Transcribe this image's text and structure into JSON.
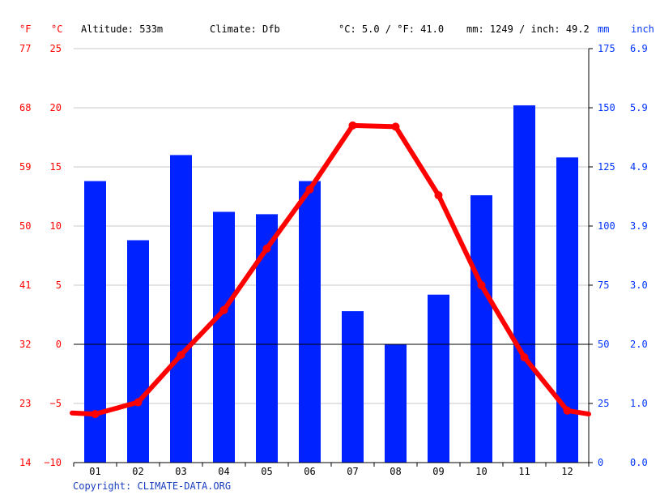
{
  "header": {
    "f_unit": "°F",
    "c_unit": "°C",
    "altitude": "Altitude: 533m",
    "climate": "Climate: Dfb",
    "temp_avg": "°C: 5.0 / °F: 41.0",
    "precip_total": "mm: 1249 / inch: 49.2",
    "mm_unit": "mm",
    "inch_unit": "inch"
  },
  "copyright": "Copyright: CLIMATE-DATA.ORG",
  "colors": {
    "temperature": "#ff0000",
    "precipitation": "#0022ff",
    "grid": "#c8c8c8",
    "zero_line": "#000000"
  },
  "chart_data": {
    "type": "bar",
    "categories": [
      "01",
      "02",
      "03",
      "04",
      "05",
      "06",
      "07",
      "08",
      "09",
      "10",
      "11",
      "12"
    ],
    "series": [
      {
        "type": "bar",
        "axis": "right",
        "unit": "mm",
        "values": [
          119,
          94,
          130,
          106,
          105,
          119,
          64,
          50,
          71,
          113,
          151,
          129
        ]
      },
      {
        "type": "line",
        "axis": "left",
        "unit": "°C",
        "values": [
          -5.9,
          -4.9,
          -0.9,
          2.9,
          8.1,
          13.1,
          18.5,
          18.4,
          12.6,
          5.0,
          -1.1,
          -5.6
        ],
        "start_value": -5.8,
        "end_value": -5.9
      }
    ],
    "y_left": {
      "label": "°C",
      "ylim": [
        -10,
        25
      ],
      "ticks": [
        "25",
        "20",
        "15",
        "10",
        "5",
        "0",
        "−5",
        "−10"
      ]
    },
    "y_left_f": {
      "label": "°F",
      "ticks": [
        "77",
        "68",
        "59",
        "50",
        "41",
        "32",
        "23",
        "14"
      ]
    },
    "y_right_mm": {
      "label": "mm",
      "ylim": [
        0,
        175
      ],
      "ticks": [
        "175",
        "150",
        "125",
        "100",
        "75",
        "50",
        "25",
        "0"
      ]
    },
    "y_right_inch": {
      "label": "inch",
      "ticks": [
        "6.9",
        "5.9",
        "4.9",
        "3.9",
        "3.0",
        "2.0",
        "1.0",
        "0.0"
      ]
    },
    "grid": true
  }
}
